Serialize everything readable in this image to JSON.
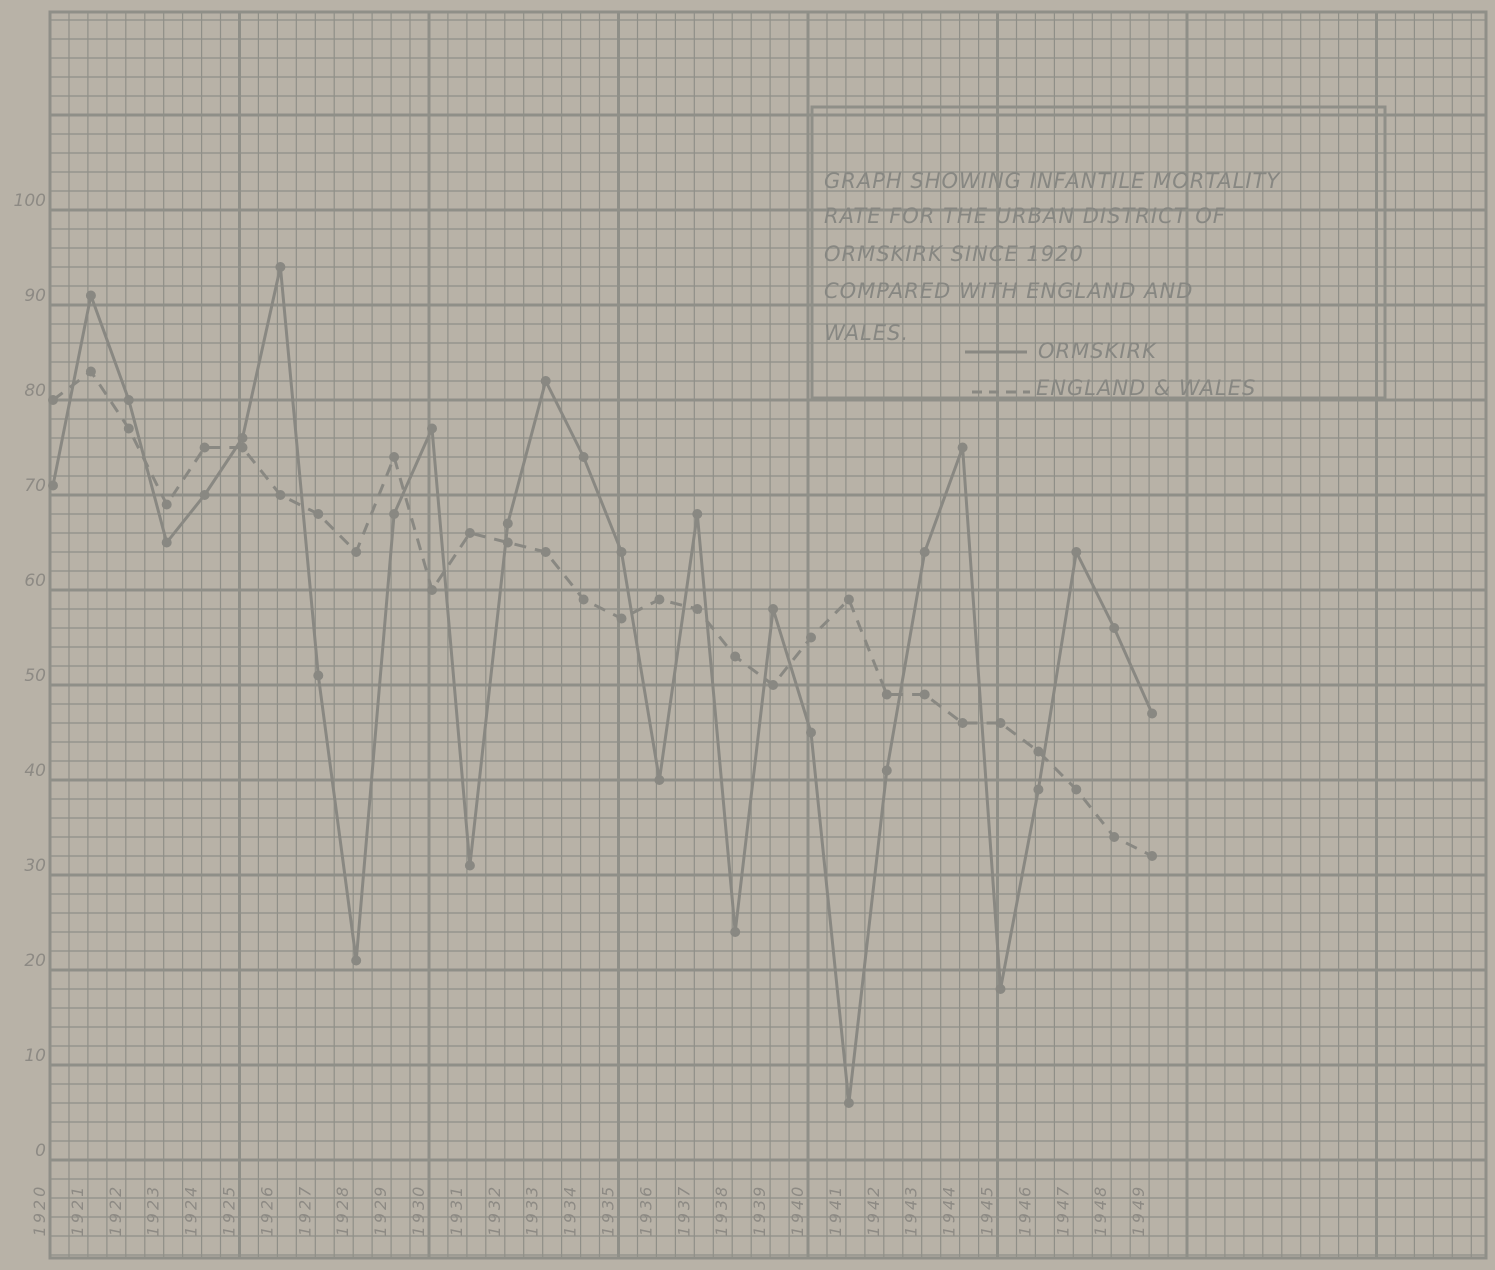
{
  "chart_data": {
    "type": "line",
    "title_lines": [
      "GRAPH SHOWING INFANTILE MORTALITY",
      "RATE FOR THE URBAN DISTRICT OF",
      "ORMSKIRK SINCE 1920",
      "COMPARED WITH ENGLAND AND",
      "WALES."
    ],
    "xlabel": "",
    "ylabel": "",
    "x": [
      1920,
      1921,
      1922,
      1923,
      1924,
      1925,
      1926,
      1927,
      1928,
      1929,
      1930,
      1931,
      1932,
      1933,
      1934,
      1935,
      1936,
      1937,
      1938,
      1939,
      1940,
      1941,
      1942,
      1943,
      1944,
      1945,
      1946,
      1947,
      1948,
      1949
    ],
    "ylim": [
      0,
      110
    ],
    "yticks": [
      0,
      10,
      20,
      30,
      40,
      50,
      60,
      70,
      80,
      90,
      100
    ],
    "ytick_labels": [
      "0",
      "10",
      "20",
      "30",
      "40",
      "50",
      "60",
      "70",
      "80",
      "90",
      "100"
    ],
    "grid": true,
    "legend_position": "top-right",
    "series": [
      {
        "name": "ORMSKIRK",
        "style": "solid",
        "values": [
          71,
          91,
          80,
          65,
          70,
          76,
          94,
          51,
          21,
          68,
          77,
          31,
          67,
          82,
          74,
          64,
          40,
          68,
          24,
          58,
          45,
          6,
          41,
          64,
          75,
          18,
          39,
          64,
          56,
          47
        ]
      },
      {
        "name": "ENGLAND & WALES",
        "style": "dashed",
        "values": [
          80,
          83,
          77,
          69,
          75,
          75,
          70,
          68,
          64,
          74,
          60,
          66,
          65,
          64,
          59,
          57,
          59,
          58,
          53,
          50,
          55,
          59,
          49,
          49,
          46,
          46,
          43,
          39,
          34,
          32
        ]
      }
    ],
    "colors": {
      "paper": "#b8b2a7",
      "grid": "#8f8f88",
      "line": "#898882"
    }
  }
}
